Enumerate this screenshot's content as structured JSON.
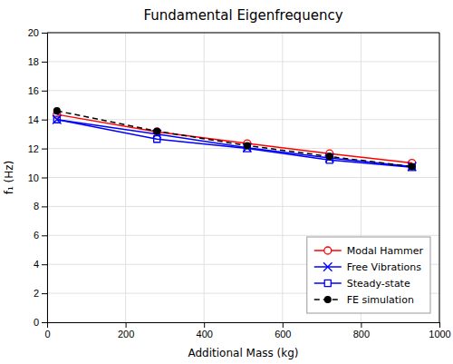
{
  "chart_data": {
    "type": "line",
    "title": "Fundamental Eigenfrequency",
    "xlabel": "Additional Mass (kg)",
    "ylabel": "f₁ (Hz)",
    "x": [
      25,
      280,
      510,
      720,
      930
    ],
    "xlim": [
      0,
      1000
    ],
    "ylim": [
      0,
      20
    ],
    "xticks": [
      0,
      200,
      400,
      600,
      800,
      1000
    ],
    "yticks": [
      0,
      2,
      4,
      6,
      8,
      10,
      12,
      14,
      16,
      18,
      20
    ],
    "grid": true,
    "legend": "lower right",
    "series": [
      {
        "name": "Modal Hammer",
        "color": "#FF0000",
        "marker": "circle-open",
        "line_style": "solid",
        "values": [
          14.35,
          13.15,
          12.35,
          11.65,
          11.0
        ]
      },
      {
        "name": "Free Vibrations",
        "color": "#0000FF",
        "marker": "x",
        "line_style": "solid",
        "values": [
          14.0,
          13.0,
          12.05,
          11.35,
          10.75
        ]
      },
      {
        "name": "Steady-state",
        "color": "#0000FF",
        "marker": "square-open",
        "line_style": "solid",
        "values": [
          14.0,
          12.65,
          12.0,
          11.2,
          10.7
        ]
      },
      {
        "name": "FE simulation",
        "color": "#000000",
        "marker": "circle",
        "line_style": "dashed",
        "values": [
          14.6,
          13.2,
          12.2,
          11.45,
          10.75
        ]
      }
    ]
  }
}
